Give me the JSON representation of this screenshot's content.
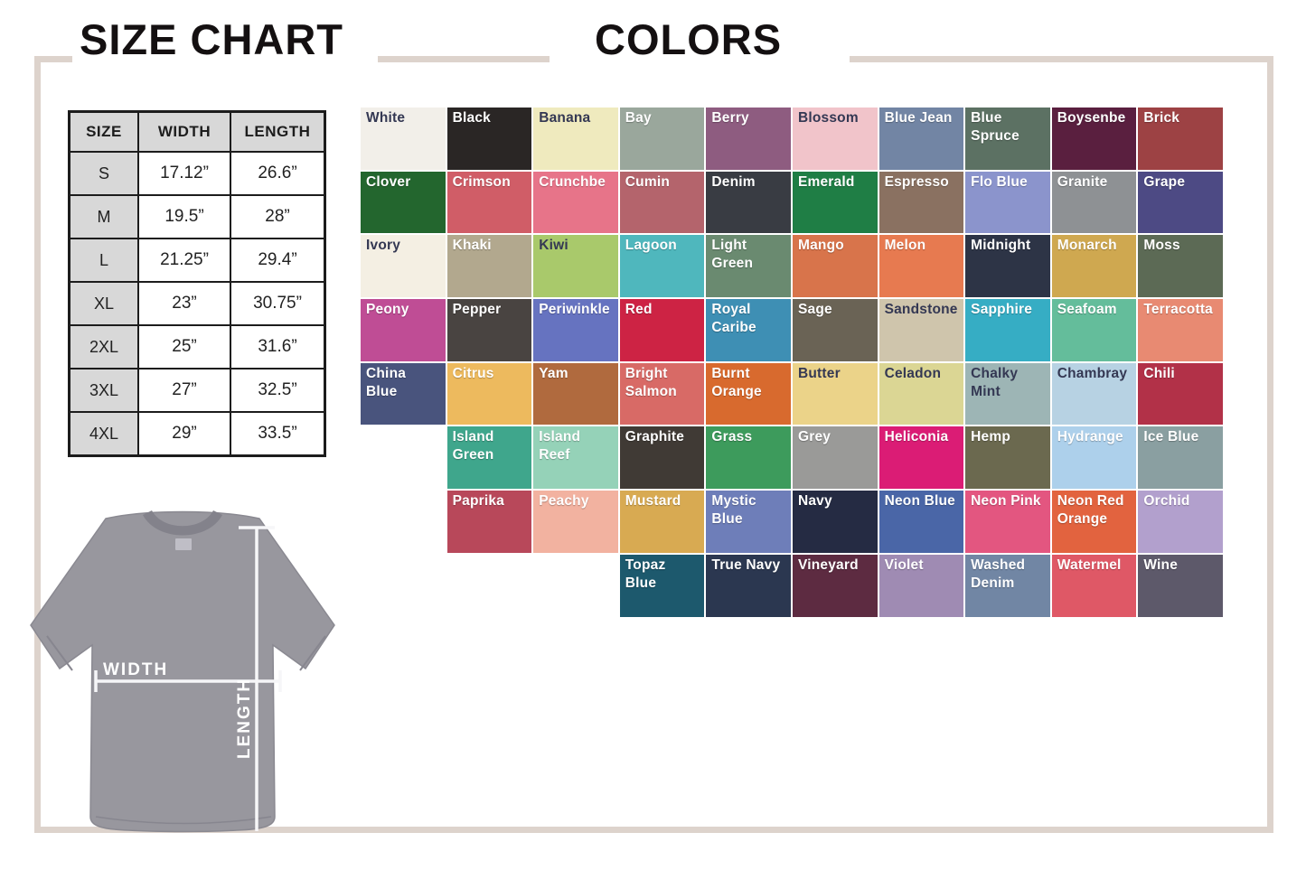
{
  "page": {
    "size_chart_title": "SIZE CHART",
    "colors_title": "COLORS",
    "frame_color": "#ddd3cc"
  },
  "size_table": {
    "headers": [
      "SIZE",
      "WIDTH",
      "LENGTH"
    ],
    "rows": [
      {
        "size": "S",
        "width": "17.12”",
        "length": "26.6”"
      },
      {
        "size": "M",
        "width": "19.5”",
        "length": "28”"
      },
      {
        "size": "L",
        "width": "21.25”",
        "length": "29.4”"
      },
      {
        "size": "XL",
        "width": "23”",
        "length": "30.75”"
      },
      {
        "size": "2XL",
        "width": "25”",
        "length": "31.6”"
      },
      {
        "size": "3XL",
        "width": "27”",
        "length": "32.5”"
      },
      {
        "size": "4XL",
        "width": "29”",
        "length": "33.5”"
      }
    ]
  },
  "shirt_diagram": {
    "width_label": "WIDTH",
    "length_label": "LENGTH",
    "shirt_color": "#98979e"
  },
  "color_grid": {
    "columns": 10,
    "tiles": [
      {
        "name": "White",
        "bg": "#f2efe9",
        "text": "dark",
        "row": 1,
        "col": 1
      },
      {
        "name": "Black",
        "bg": "#2a2625",
        "text": "light",
        "row": 1,
        "col": 2
      },
      {
        "name": "Banana",
        "bg": "#efeabe",
        "text": "dark",
        "row": 1,
        "col": 3
      },
      {
        "name": "Bay",
        "bg": "#9aa79c",
        "text": "light",
        "row": 1,
        "col": 4
      },
      {
        "name": "Berry",
        "bg": "#8e5c80",
        "text": "light",
        "row": 1,
        "col": 5
      },
      {
        "name": "Blossom",
        "bg": "#f1c4ca",
        "text": "dark",
        "row": 1,
        "col": 6
      },
      {
        "name": "Blue Jean",
        "bg": "#7285a4",
        "text": "light",
        "row": 1,
        "col": 7
      },
      {
        "name": "Blue Spruce",
        "bg": "#5c7163",
        "text": "light",
        "row": 1,
        "col": 8
      },
      {
        "name": "Boysenbe",
        "bg": "#5a1f3f",
        "text": "light",
        "row": 1,
        "col": 9
      },
      {
        "name": "Brick",
        "bg": "#9d4244",
        "text": "light",
        "row": 1,
        "col": 10
      },
      {
        "name": "Clover",
        "bg": "#23662e",
        "text": "light",
        "row": 2,
        "col": 1
      },
      {
        "name": "Crimson",
        "bg": "#d05d67",
        "text": "light",
        "row": 2,
        "col": 2
      },
      {
        "name": "Crunchbe",
        "bg": "#e77489",
        "text": "light",
        "row": 2,
        "col": 3
      },
      {
        "name": "Cumin",
        "bg": "#b4646c",
        "text": "light",
        "row": 2,
        "col": 4
      },
      {
        "name": "Denim",
        "bg": "#393c43",
        "text": "light",
        "row": 2,
        "col": 5
      },
      {
        "name": "Emerald",
        "bg": "#1f7e45",
        "text": "light",
        "row": 2,
        "col": 6
      },
      {
        "name": "Espresso",
        "bg": "#8a7161",
        "text": "light",
        "row": 2,
        "col": 7
      },
      {
        "name": "Flo Blue",
        "bg": "#8b94cc",
        "text": "light",
        "row": 2,
        "col": 8
      },
      {
        "name": "Granite",
        "bg": "#8e9194",
        "text": "light",
        "row": 2,
        "col": 9
      },
      {
        "name": "Grape",
        "bg": "#4d4a84",
        "text": "light",
        "row": 2,
        "col": 10
      },
      {
        "name": "Ivory",
        "bg": "#f4efe3",
        "text": "dark",
        "row": 3,
        "col": 1
      },
      {
        "name": "Khaki",
        "bg": "#b2a88e",
        "text": "light",
        "row": 3,
        "col": 2
      },
      {
        "name": "Kiwi",
        "bg": "#a9c96b",
        "text": "dark",
        "row": 3,
        "col": 3
      },
      {
        "name": "Lagoon",
        "bg": "#4fb7bd",
        "text": "light",
        "row": 3,
        "col": 4
      },
      {
        "name": "Light Green",
        "bg": "#6a8a70",
        "text": "light",
        "row": 3,
        "col": 5
      },
      {
        "name": "Mango",
        "bg": "#d8744b",
        "text": "light",
        "row": 3,
        "col": 6
      },
      {
        "name": "Melon",
        "bg": "#e77a50",
        "text": "light",
        "row": 3,
        "col": 7
      },
      {
        "name": "Midnight",
        "bg": "#2d3446",
        "text": "light",
        "row": 3,
        "col": 8
      },
      {
        "name": "Monarch",
        "bg": "#cfa850",
        "text": "light",
        "row": 3,
        "col": 9
      },
      {
        "name": "Moss",
        "bg": "#5c6a55",
        "text": "light",
        "row": 3,
        "col": 10
      },
      {
        "name": "Peony",
        "bg": "#bf4d95",
        "text": "light",
        "row": 4,
        "col": 1
      },
      {
        "name": "Pepper",
        "bg": "#494441",
        "text": "light",
        "row": 4,
        "col": 2
      },
      {
        "name": "Periwinkle",
        "bg": "#6673c0",
        "text": "light",
        "row": 4,
        "col": 3
      },
      {
        "name": "Red",
        "bg": "#cd2344",
        "text": "light",
        "row": 4,
        "col": 4
      },
      {
        "name": "Royal Caribe",
        "bg": "#3e8fb4",
        "text": "light",
        "row": 4,
        "col": 5
      },
      {
        "name": "Sage",
        "bg": "#6a6355",
        "text": "light",
        "row": 4,
        "col": 6
      },
      {
        "name": "Sandstone",
        "bg": "#cfc5ac",
        "text": "dark",
        "row": 4,
        "col": 7
      },
      {
        "name": "Sapphire",
        "bg": "#36adc4",
        "text": "light",
        "row": 4,
        "col": 8
      },
      {
        "name": "Seafoam",
        "bg": "#64bd9b",
        "text": "light",
        "row": 4,
        "col": 9
      },
      {
        "name": "Terracotta",
        "bg": "#e88a72",
        "text": "light",
        "row": 4,
        "col": 10
      },
      {
        "name": "China Blue",
        "bg": "#49547d",
        "text": "light",
        "row": 5,
        "col": 1
      },
      {
        "name": "Citrus",
        "bg": "#edba5e",
        "text": "light",
        "row": 5,
        "col": 2
      },
      {
        "name": "Yam",
        "bg": "#b06a3e",
        "text": "light",
        "row": 5,
        "col": 3
      },
      {
        "name": "Bright Salmon",
        "bg": "#d86a66",
        "text": "light",
        "row": 5,
        "col": 4
      },
      {
        "name": "Burnt Orange",
        "bg": "#d86a2e",
        "text": "light",
        "row": 5,
        "col": 5
      },
      {
        "name": "Butter",
        "bg": "#ebd389",
        "text": "dark",
        "row": 5,
        "col": 6
      },
      {
        "name": "Celadon",
        "bg": "#dbd694",
        "text": "dark",
        "row": 5,
        "col": 7
      },
      {
        "name": "Chalky Mint",
        "bg": "#9db5b5",
        "text": "dark",
        "row": 5,
        "col": 8
      },
      {
        "name": "Chambray",
        "bg": "#b7d2e3",
        "text": "dark",
        "row": 5,
        "col": 9
      },
      {
        "name": "Chili",
        "bg": "#b23148",
        "text": "light",
        "row": 5,
        "col": 10
      },
      {
        "name": "Island Green",
        "bg": "#3fa68c",
        "text": "light",
        "row": 6,
        "col": 2
      },
      {
        "name": "Island Reef",
        "bg": "#95d2b8",
        "text": "light",
        "row": 6,
        "col": 3
      },
      {
        "name": "Graphite",
        "bg": "#403a35",
        "text": "light",
        "row": 6,
        "col": 4
      },
      {
        "name": "Grass",
        "bg": "#3d9b5c",
        "text": "light",
        "row": 6,
        "col": 5
      },
      {
        "name": "Grey",
        "bg": "#9a9a98",
        "text": "light",
        "row": 6,
        "col": 6
      },
      {
        "name": "Heliconia",
        "bg": "#db1c75",
        "text": "light",
        "row": 6,
        "col": 7
      },
      {
        "name": "Hemp",
        "bg": "#6b694f",
        "text": "light",
        "row": 6,
        "col": 8
      },
      {
        "name": "Hydrange",
        "bg": "#add0eb",
        "text": "light",
        "row": 6,
        "col": 9
      },
      {
        "name": "Ice Blue",
        "bg": "#8a9fa1",
        "text": "light",
        "row": 6,
        "col": 10
      },
      {
        "name": "Paprika",
        "bg": "#b8485a",
        "text": "light",
        "row": 7,
        "col": 2
      },
      {
        "name": "Peachy",
        "bg": "#f2b2a0",
        "text": "light",
        "row": 7,
        "col": 3
      },
      {
        "name": "Mustard",
        "bg": "#d8aa52",
        "text": "light",
        "row": 7,
        "col": 4
      },
      {
        "name": "Mystic Blue",
        "bg": "#6e7eb9",
        "text": "light",
        "row": 7,
        "col": 5
      },
      {
        "name": "Navy",
        "bg": "#252b43",
        "text": "light",
        "row": 7,
        "col": 6
      },
      {
        "name": "Neon Blue",
        "bg": "#4a66a7",
        "text": "light",
        "row": 7,
        "col": 7
      },
      {
        "name": "Neon Pink",
        "bg": "#e35680",
        "text": "light",
        "row": 7,
        "col": 8
      },
      {
        "name": "Neon Red Orange",
        "bg": "#e2633f",
        "text": "light",
        "row": 7,
        "col": 9
      },
      {
        "name": "Orchid",
        "bg": "#b2a0cd",
        "text": "light",
        "row": 7,
        "col": 10
      },
      {
        "name": "Topaz Blue",
        "bg": "#1d596d",
        "text": "light",
        "row": 8,
        "col": 4
      },
      {
        "name": "True Navy",
        "bg": "#2b3750",
        "text": "light",
        "row": 8,
        "col": 5
      },
      {
        "name": "Vineyard",
        "bg": "#5d2b41",
        "text": "light",
        "row": 8,
        "col": 6
      },
      {
        "name": "Violet",
        "bg": "#9f8bb3",
        "text": "light",
        "row": 8,
        "col": 7
      },
      {
        "name": "Washed Denim",
        "bg": "#7186a4",
        "text": "light",
        "row": 8,
        "col": 8
      },
      {
        "name": "Watermel",
        "bg": "#df5866",
        "text": "light",
        "row": 8,
        "col": 9
      },
      {
        "name": "Wine",
        "bg": "#5d596a",
        "text": "light",
        "row": 8,
        "col": 10
      }
    ]
  },
  "chart_data": [
    {
      "type": "table",
      "title": "SIZE CHART",
      "columns": [
        "SIZE",
        "WIDTH",
        "LENGTH"
      ],
      "rows": [
        [
          "S",
          "17.12”",
          "26.6”"
        ],
        [
          "M",
          "19.5”",
          "28”"
        ],
        [
          "L",
          "21.25”",
          "29.4”"
        ],
        [
          "XL",
          "23”",
          "30.75”"
        ],
        [
          "2XL",
          "25”",
          "31.6”"
        ],
        [
          "3XL",
          "27”",
          "32.5”"
        ],
        [
          "4XL",
          "29”",
          "33.5”"
        ]
      ]
    },
    {
      "type": "table",
      "title": "COLORS",
      "values": [
        "White",
        "Black",
        "Banana",
        "Bay",
        "Berry",
        "Blossom",
        "Blue Jean",
        "Blue Spruce",
        "Boysenbe",
        "Brick",
        "Clover",
        "Crimson",
        "Crunchbe",
        "Cumin",
        "Denim",
        "Emerald",
        "Espresso",
        "Flo Blue",
        "Granite",
        "Grape",
        "Ivory",
        "Khaki",
        "Kiwi",
        "Lagoon",
        "Light Green",
        "Mango",
        "Melon",
        "Midnight",
        "Monarch",
        "Moss",
        "Peony",
        "Pepper",
        "Periwinkle",
        "Red",
        "Royal Caribe",
        "Sage",
        "Sandstone",
        "Sapphire",
        "Seafoam",
        "Terracotta",
        "China Blue",
        "Citrus",
        "Yam",
        "Bright Salmon",
        "Burnt Orange",
        "Butter",
        "Celadon",
        "Chalky Mint",
        "Chambray",
        "Chili",
        "Island Green",
        "Island Reef",
        "Graphite",
        "Grass",
        "Grey",
        "Heliconia",
        "Hemp",
        "Hydrange",
        "Ice Blue",
        "Paprika",
        "Peachy",
        "Mustard",
        "Mystic Blue",
        "Navy",
        "Neon Blue",
        "Neon Pink",
        "Neon Red Orange",
        "Orchid",
        "Topaz Blue",
        "True Navy",
        "Vineyard",
        "Violet",
        "Washed Denim",
        "Watermel",
        "Wine"
      ]
    }
  ]
}
